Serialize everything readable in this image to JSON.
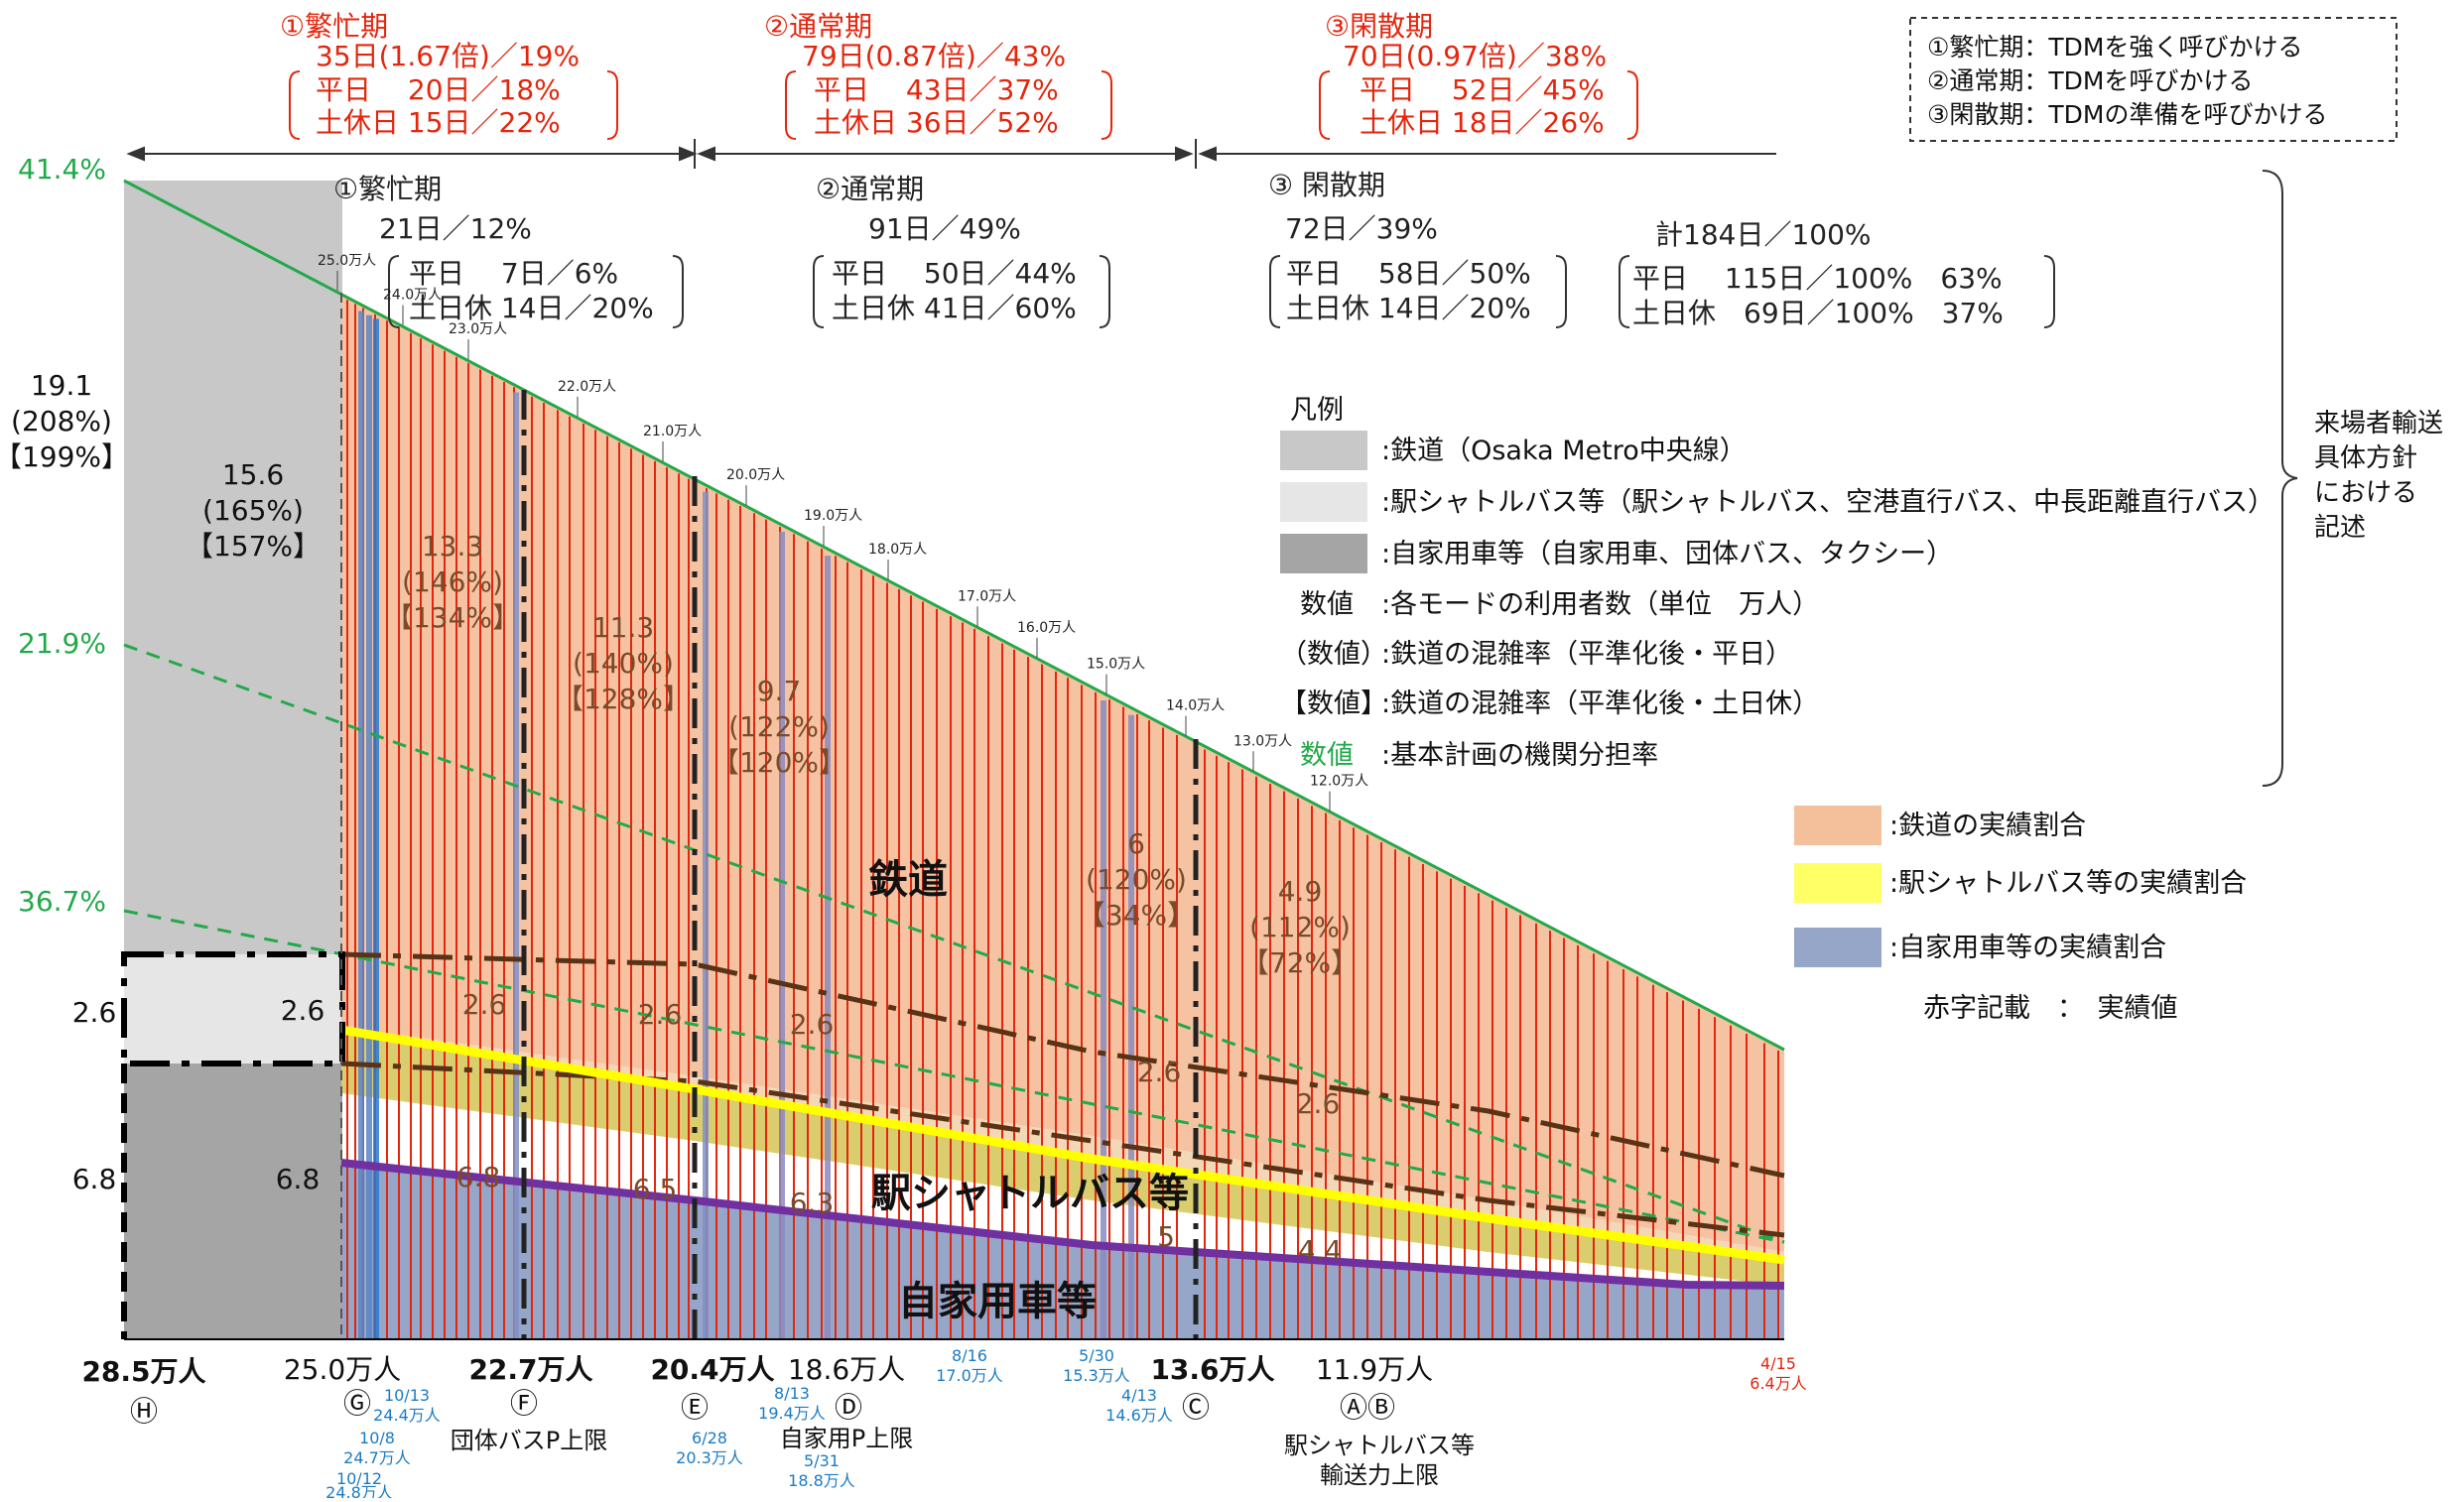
{
  "chart_data": {
    "type": "area",
    "title": "",
    "xlabel": "",
    "ylabel": "",
    "x_axis": {
      "categories": [
        "28.5万人",
        "25.0万人",
        "22.7万人",
        "20.4万人",
        "18.6万人",
        "13.6万人",
        "11.9万人"
      ],
      "markers": [
        "Ⓗ",
        "Ⓖ",
        "Ⓕ",
        "Ⓔ",
        "Ⓓ",
        "Ⓒ",
        "ⒶⒷ"
      ],
      "annotations": [
        "団体バスP上限",
        "自家用P上限",
        "駅シャトルバス等",
        "輸送力上限"
      ]
    },
    "series": [
      {
        "name": "鉄道",
        "values": [
          19.1,
          15.6,
          13.3,
          11.3,
          9.7,
          6.0,
          4.9
        ]
      },
      {
        "name": "駅シャトルバス等",
        "values": [
          2.6,
          2.6,
          2.6,
          2.6,
          2.6,
          2.6,
          2.6
        ]
      },
      {
        "name": "自家用車等",
        "values": [
          6.8,
          6.8,
          6.8,
          6.5,
          6.3,
          5.0,
          4.4
        ]
      }
    ],
    "ratios_weekday": [
      "(208%)",
      "(165%)",
      "(146%)",
      "(140%)",
      "(122%)",
      "(120%)",
      "(112%)"
    ],
    "ratios_holiday": [
      "【199%】",
      "【157%】",
      "【134%】",
      "【128%】",
      "【120%】",
      "【34%】",
      "【72%】"
    ],
    "share_labels": [
      "41.4%",
      "21.9%",
      "36.7%"
    ],
    "total_labels": [
      "25.0万人",
      "24.0万人",
      "23.0万人",
      "22.0万人",
      "21.0万人",
      "20.0万人",
      "19.0万人",
      "18.0万人",
      "17.0万人",
      "16.0万人",
      "15.0万人",
      "14.0万人",
      "13.0万人",
      "12.0万人"
    ],
    "date_labels": [
      {
        "date": "10/13",
        "value": "24.4万人"
      },
      {
        "date": "10/8",
        "value": "24.7万人"
      },
      {
        "date": "10/12",
        "value": "24.8万人"
      },
      {
        "date": "6/28",
        "value": "20.3万人"
      },
      {
        "date": "8/13",
        "value": "19.4万人"
      },
      {
        "date": "5/31",
        "value": "18.8万人"
      },
      {
        "date": "8/16",
        "value": "17.0万人"
      },
      {
        "date": "5/30",
        "value": "15.3万人"
      },
      {
        "date": "4/13",
        "value": "14.6万人"
      },
      {
        "date": "4/15",
        "value": "6.4万人"
      }
    ],
    "red_periods": [
      {
        "label": "①繁忙期",
        "l1": "35日(1.67倍)／19%",
        "l2": "平日　 20日／18%",
        "l3": "土休日 15日／22%"
      },
      {
        "label": "②通常期",
        "l1": "79日(0.87倍)／43%",
        "l2": "平日　 43日／37%",
        "l3": "土休日 36日／52%"
      },
      {
        "label": "③閑散期",
        "l1": "70日(0.97倍)／38%",
        "l2": "平日　 52日／45%",
        "l3": "土休日 18日／26%"
      }
    ],
    "periods": [
      {
        "label": "①繁忙期",
        "l1": "21日／12%",
        "l2": "平日　 7日／6%",
        "l3": "土日休 14日／20%"
      },
      {
        "label": "②通常期",
        "l1": "91日／49%",
        "l2": "平日　 50日／44%",
        "l3": "土日休 41日／60%"
      },
      {
        "label": "③ 閑散期",
        "l1": "72日／39%",
        "l2": "平日　 58日／50%",
        "l3": "土日休 14日／20%"
      }
    ],
    "total": {
      "l1": "計184日／100%",
      "l2": "平日　 115日／100%　63%",
      "l3": "土日休　69日／100%　37%"
    },
    "tdm_box": [
      "①繁忙期：TDMを強く呼びかける",
      "②通常期：TDMを呼びかける",
      "③閑散期：TDMの準備を呼びかける"
    ],
    "side_note": [
      "来場者輸送",
      "具体方針",
      "における",
      "記述"
    ],
    "legend": {
      "title": "凡例",
      "items": [
        {
          "label": ":鉄道（Osaka Metro中央線）",
          "color": "#c8c8c8"
        },
        {
          "label": ":駅シャトルバス等（駅シャトルバス、空港直行バス、中長距離直行バス）",
          "color": "#e6e6e6"
        },
        {
          "label": ":自家用車等（自家用車、団体バス、タクシー）",
          "color": "#a5a5a5"
        }
      ],
      "text_items": [
        {
          "key": "数値",
          "label": ":各モードの利用者数（単位　万人）"
        },
        {
          "key": "（数値）",
          "label": ":鉄道の混雑率（平準化後・平日）"
        },
        {
          "key": "【数値】",
          "label": ":鉄道の混雑率（平準化後・土日休）"
        },
        {
          "key": "数値",
          "label": ":基本計画の機関分担率"
        }
      ],
      "actual_items": [
        {
          "label": ":鉄道の実績割合",
          "color": "#f4c09c"
        },
        {
          "label": ":駅シャトルバス等の実績割合",
          "color": "#ffff66"
        },
        {
          "label": ":自家用車等の実績割合",
          "color": "#95a6c8"
        }
      ],
      "note": "赤字記載　：　実績値"
    },
    "colors": {
      "rail": "#f4c09c",
      "shuttle": "#ffff66",
      "car": "#95a6c8",
      "share_line": "#22a94a",
      "actual_line": "#e3260d",
      "car_line": "#7030a0"
    }
  }
}
